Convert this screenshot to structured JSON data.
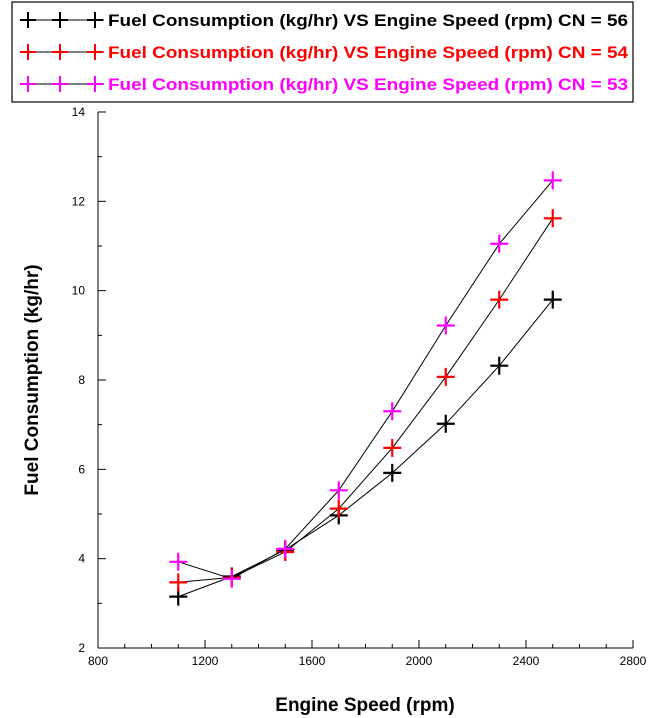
{
  "chart_data": {
    "type": "line",
    "xlabel": "Engine Speed (rpm)",
    "ylabel": "Fuel Consumption (kg/hr)",
    "xlim": [
      800,
      2800
    ],
    "ylim": [
      2,
      14
    ],
    "x_ticks": [
      800,
      1200,
      1600,
      2000,
      2400,
      2800
    ],
    "y_ticks": [
      2,
      4,
      6,
      8,
      10,
      12,
      14
    ],
    "grid": false,
    "legend_position": "top-left",
    "marker": "plus",
    "x": [
      1100,
      1300,
      1500,
      1700,
      1900,
      2100,
      2300,
      2500
    ],
    "series": [
      {
        "name": "Fuel Consumption (kg/hr) VS Engine Speed (rpm) CN = 56",
        "color": "#000000",
        "values": [
          3.15,
          3.6,
          4.2,
          4.97,
          5.92,
          7.02,
          8.32,
          9.8
        ]
      },
      {
        "name": "Fuel Consumption (kg/hr) VS Engine Speed (rpm) CN = 54",
        "color": "#ff0000",
        "values": [
          3.47,
          3.58,
          4.15,
          5.12,
          6.48,
          8.07,
          9.8,
          11.62
        ]
      },
      {
        "name": "Fuel Consumption (kg/hr) VS Engine Speed (rpm) CN = 53",
        "color": "#ff00ff",
        "values": [
          3.93,
          3.55,
          4.22,
          5.53,
          7.3,
          9.22,
          11.05,
          12.47
        ]
      }
    ]
  }
}
